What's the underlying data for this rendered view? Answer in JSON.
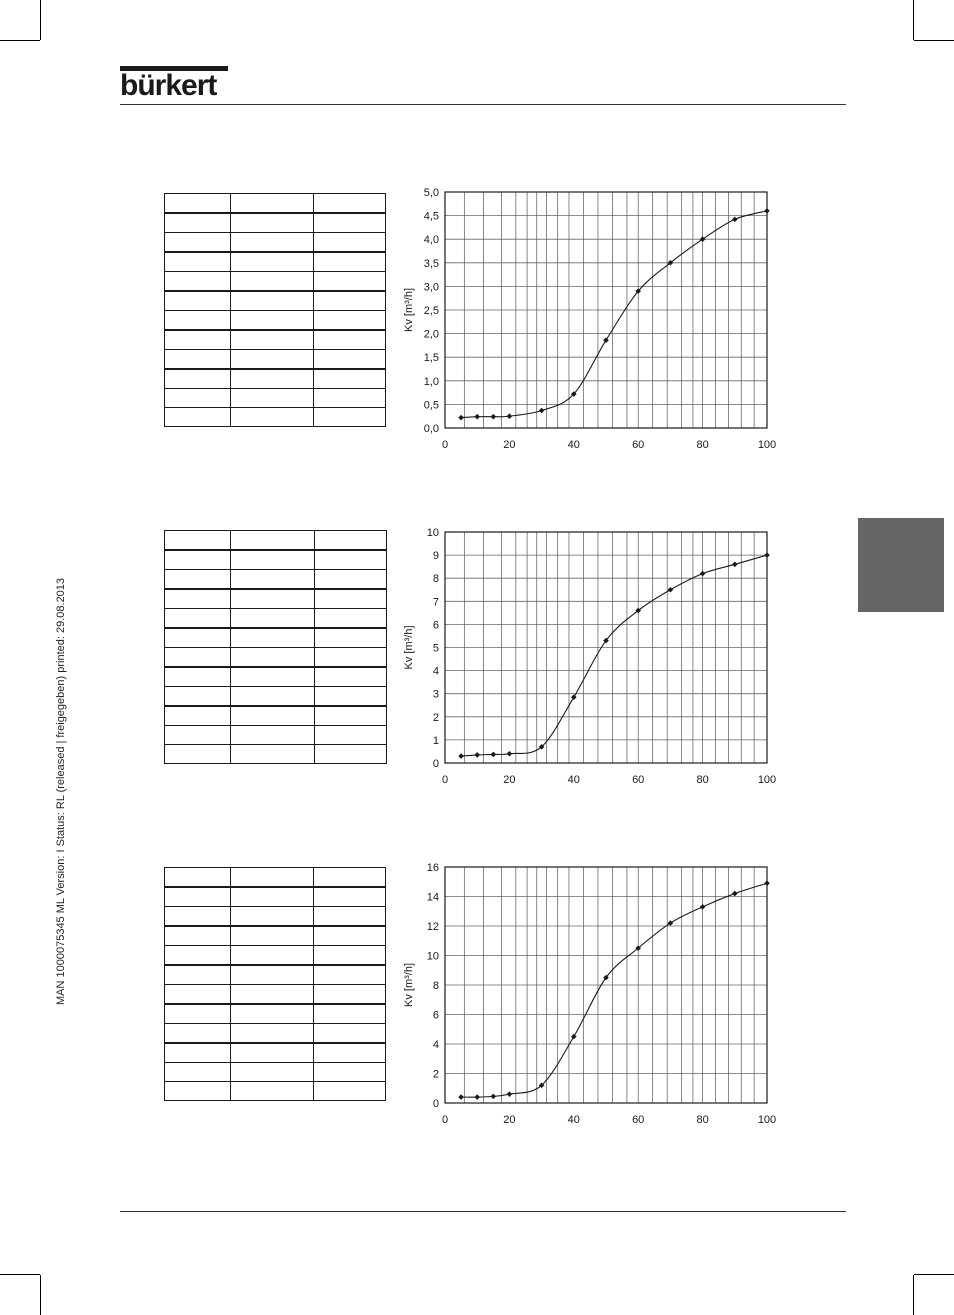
{
  "header": {
    "logo_text": "bürkert"
  },
  "side_note": "MAN 1000075345 ML Version: I Status: RL (released | freigegeben) printed: 29.08.2013",
  "charts": [
    {
      "ylabel": "Kv [m³/h]",
      "y_ticks": [
        "0,0",
        "0,5",
        "1,0",
        "1,5",
        "2,0",
        "2,5",
        "3,0",
        "3,5",
        "4,0",
        "4,5",
        "5,0"
      ],
      "x_ticks": [
        "0",
        "20",
        "40",
        "60",
        "80",
        "100"
      ],
      "chart_data": {
        "type": "line",
        "xlim": [
          0,
          100
        ],
        "ylim": [
          0,
          5
        ],
        "x": [
          5,
          10,
          15,
          20,
          30,
          40,
          50,
          60,
          70,
          80,
          90,
          100
        ],
        "y": [
          0.22,
          0.24,
          0.24,
          0.25,
          0.37,
          0.72,
          1.86,
          2.9,
          3.5,
          4.0,
          4.42,
          4.6
        ]
      }
    },
    {
      "ylabel": "Kv [m³/h]",
      "y_ticks": [
        "0",
        "1",
        "2",
        "3",
        "4",
        "5",
        "6",
        "7",
        "8",
        "9",
        "10"
      ],
      "x_ticks": [
        "0",
        "20",
        "40",
        "60",
        "80",
        "100"
      ],
      "chart_data": {
        "type": "line",
        "xlim": [
          0,
          100
        ],
        "ylim": [
          0,
          10
        ],
        "x": [
          5,
          10,
          15,
          20,
          30,
          40,
          50,
          60,
          70,
          80,
          90,
          100
        ],
        "y": [
          0.3,
          0.35,
          0.37,
          0.4,
          0.7,
          2.85,
          5.3,
          6.6,
          7.5,
          8.2,
          8.6,
          9.0
        ]
      }
    },
    {
      "ylabel": "Kv [m³/h]",
      "y_ticks": [
        "0",
        "2",
        "4",
        "6",
        "8",
        "10",
        "12",
        "14",
        "16"
      ],
      "x_ticks": [
        "0",
        "20",
        "40",
        "60",
        "80",
        "100"
      ],
      "chart_data": {
        "type": "line",
        "xlim": [
          0,
          100
        ],
        "ylim": [
          0,
          16
        ],
        "x": [
          5,
          10,
          15,
          20,
          30,
          40,
          50,
          60,
          70,
          80,
          90,
          100
        ],
        "y": [
          0.4,
          0.4,
          0.45,
          0.6,
          1.2,
          4.5,
          8.5,
          10.5,
          12.2,
          13.3,
          14.2,
          14.9
        ]
      }
    }
  ]
}
